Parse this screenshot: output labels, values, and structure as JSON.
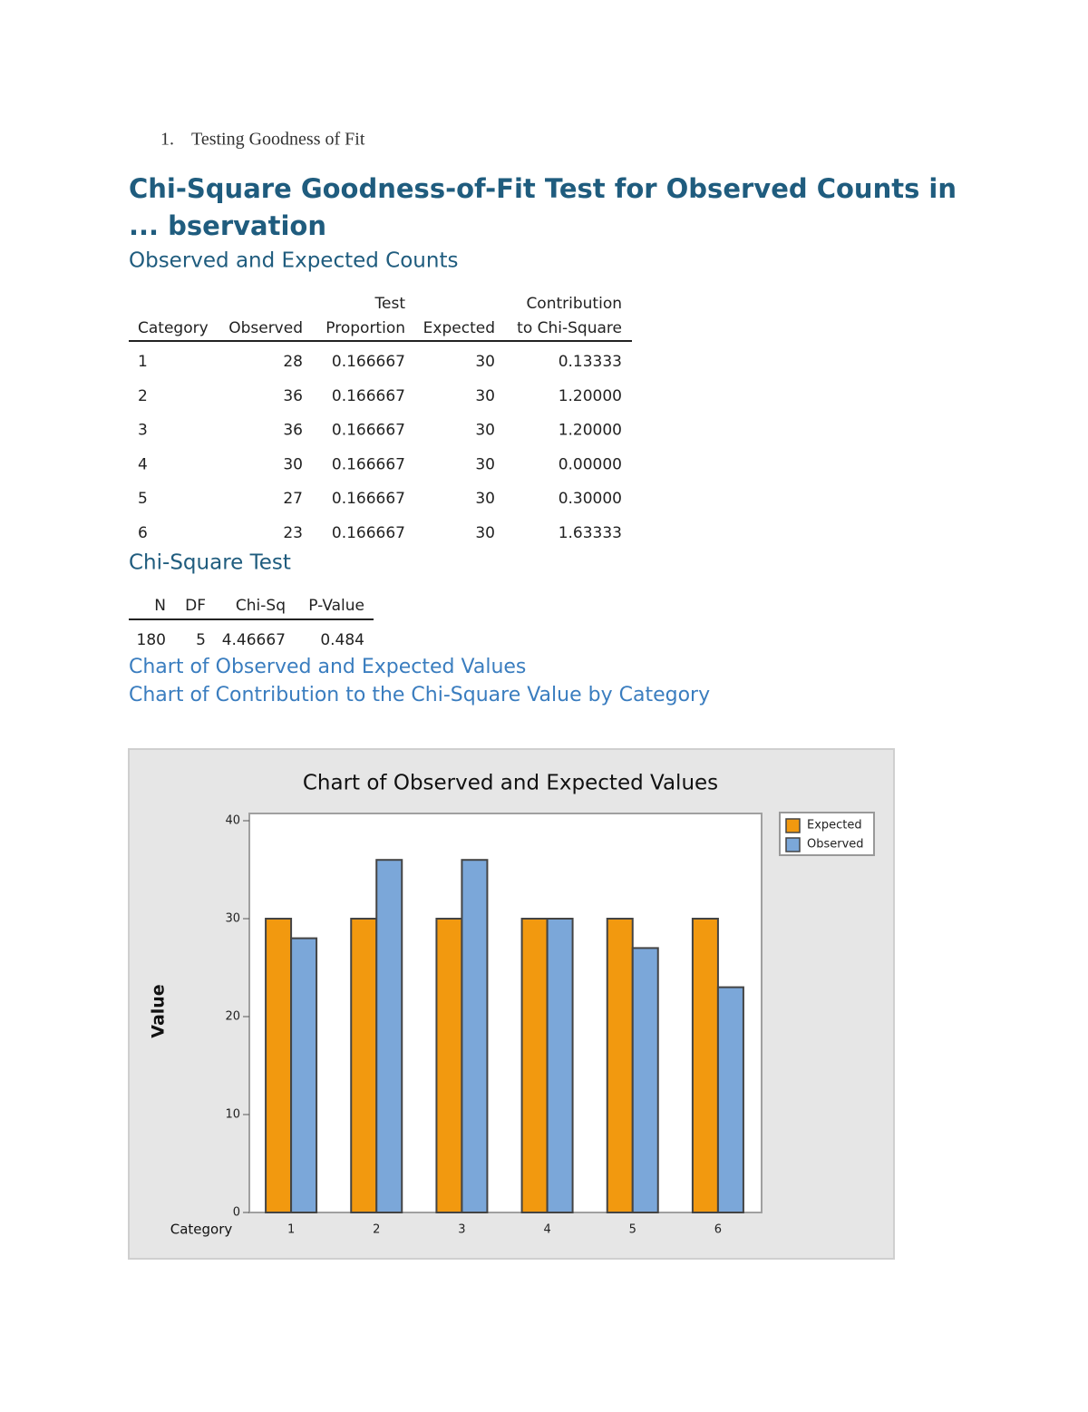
{
  "list_item": {
    "number": "1.",
    "text": "Testing Goodness of Fit"
  },
  "heading": {
    "lines": [
      "Chi-Square Goodness-of-Fit Test for Observed Counts in",
      "... bservation"
    ]
  },
  "counts_section": {
    "title": "Observed and Expected Counts",
    "table": {
      "columns": [
        {
          "label": "Category"
        },
        {
          "label": "Observed"
        },
        {
          "top": "Test",
          "label": "Proportion"
        },
        {
          "label": "Expected"
        },
        {
          "top": "Contribution",
          "label": "to Chi-Square"
        }
      ],
      "rows": [
        [
          "1",
          "28",
          "0.166667",
          "30",
          "0.13333"
        ],
        [
          "2",
          "36",
          "0.166667",
          "30",
          "1.20000"
        ],
        [
          "3",
          "36",
          "0.166667",
          "30",
          "1.20000"
        ],
        [
          "4",
          "30",
          "0.166667",
          "30",
          "0.00000"
        ],
        [
          "5",
          "27",
          "0.166667",
          "30",
          "0.30000"
        ],
        [
          "6",
          "23",
          "0.166667",
          "30",
          "1.63333"
        ]
      ]
    }
  },
  "test_section": {
    "title": "Chi-Square Test",
    "table": {
      "columns": [
        {
          "label": "N"
        },
        {
          "label": "DF"
        },
        {
          "label": "Chi-Sq"
        },
        {
          "label": "P-Value"
        }
      ],
      "rows": [
        [
          "180",
          "5",
          "4.46667",
          "0.484"
        ]
      ]
    }
  },
  "links": [
    "Chart of Observed and Expected Values",
    "Chart of Contribution to the Chi-Square Value by Category"
  ],
  "chart_data": {
    "type": "bar",
    "title": "Chart of Observed and Expected Values",
    "x_label": "Category",
    "y_label": "Value",
    "categories": [
      "1",
      "2",
      "3",
      "4",
      "5",
      "6"
    ],
    "series": [
      {
        "name": "Expected",
        "color": "#f2990f",
        "values": [
          30,
          30,
          30,
          30,
          30,
          30
        ]
      },
      {
        "name": "Observed",
        "color": "#7ba7d9",
        "values": [
          28,
          36,
          36,
          30,
          27,
          23
        ]
      }
    ],
    "ylim": [
      0,
      40
    ],
    "yticks": [
      0,
      10,
      20,
      30,
      40
    ],
    "legend": "outside-right"
  }
}
